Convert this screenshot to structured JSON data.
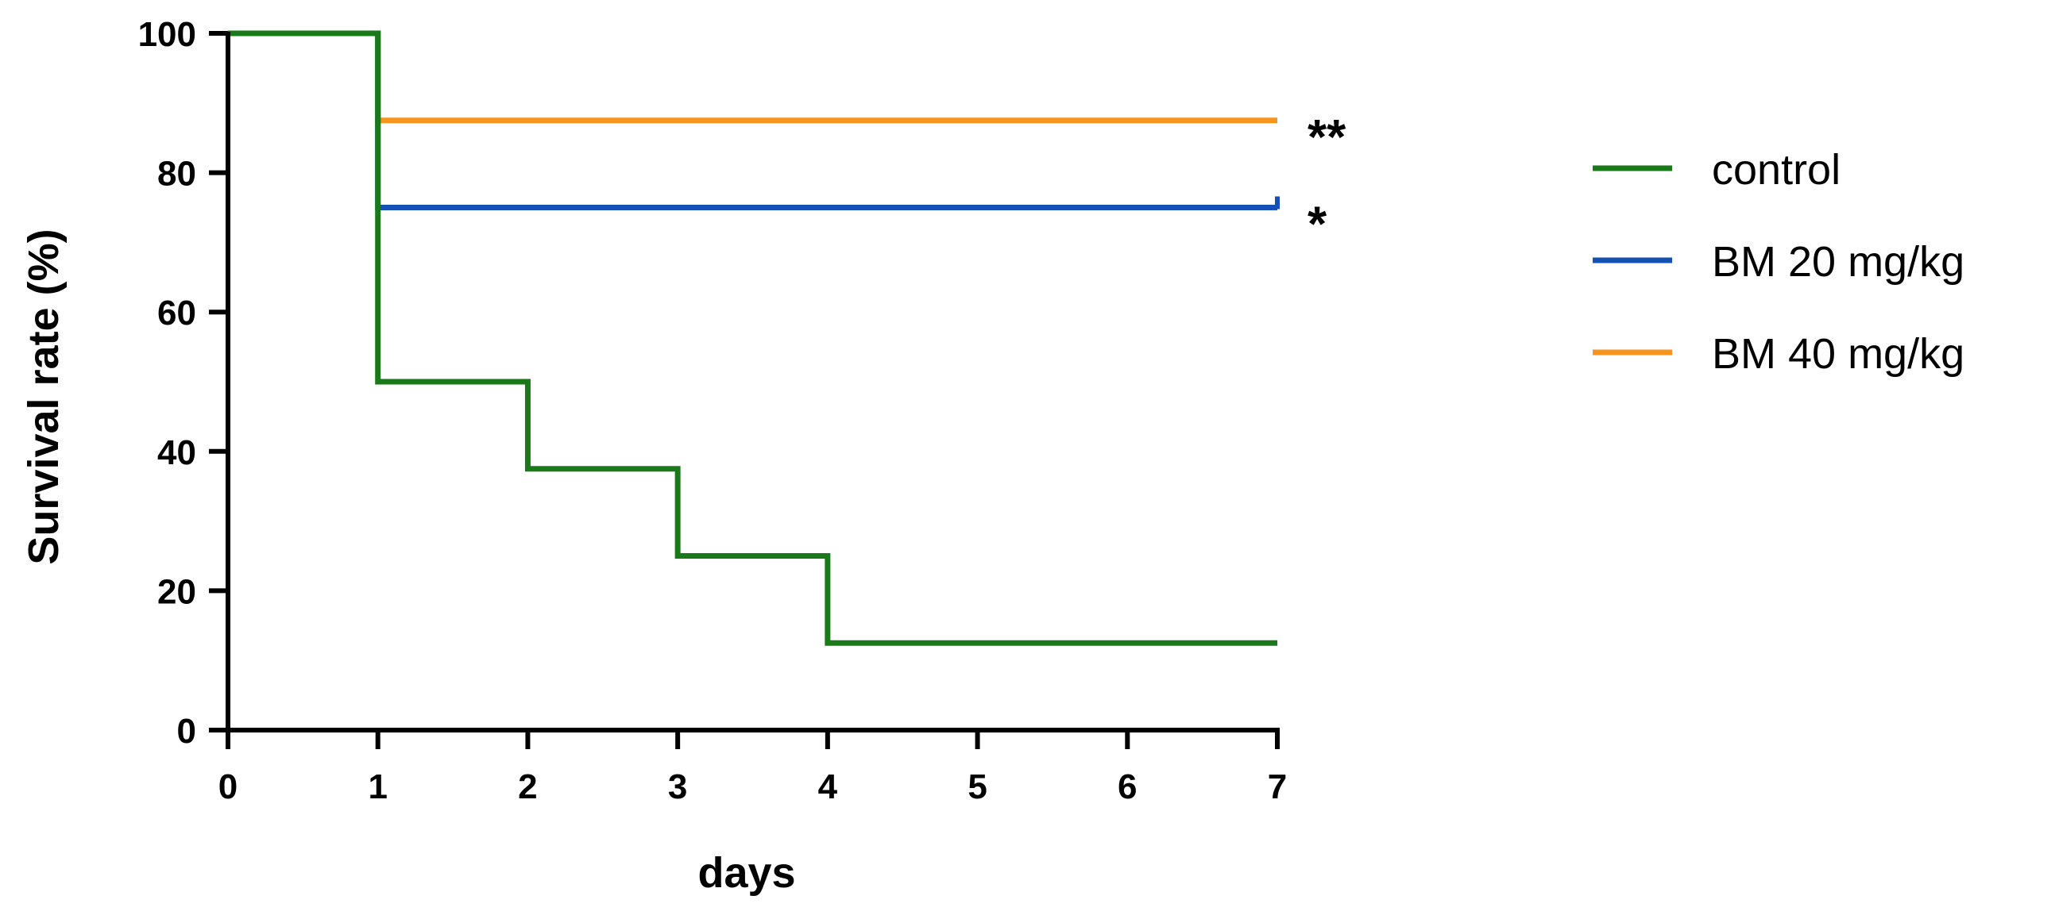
{
  "chart_data": {
    "type": "line",
    "step": true,
    "xlabel": "days",
    "ylabel": "Survival rate (%)",
    "xlim": [
      0,
      7
    ],
    "ylim": [
      0,
      100
    ],
    "xticks": [
      "0",
      "1",
      "2",
      "3",
      "4",
      "5",
      "6",
      "7"
    ],
    "yticks": [
      "0",
      "20",
      "40",
      "60",
      "80",
      "100"
    ],
    "grid": false,
    "legend_position": "right",
    "series": [
      {
        "name": "control",
        "color": "#1a7a1a",
        "x": [
          0,
          1,
          2,
          3,
          4,
          7
        ],
        "y": [
          100,
          50,
          37.5,
          25,
          12.5,
          12.5
        ]
      },
      {
        "name": "BM 20 mg/kg",
        "color": "#1550b4",
        "x": [
          0,
          1,
          7
        ],
        "y": [
          100,
          75,
          75
        ],
        "annotation": "*"
      },
      {
        "name": "BM 40 mg/kg",
        "color": "#f7941d",
        "x": [
          0,
          1,
          7
        ],
        "y": [
          100,
          87.5,
          87.5
        ],
        "annotation": "**"
      }
    ]
  }
}
